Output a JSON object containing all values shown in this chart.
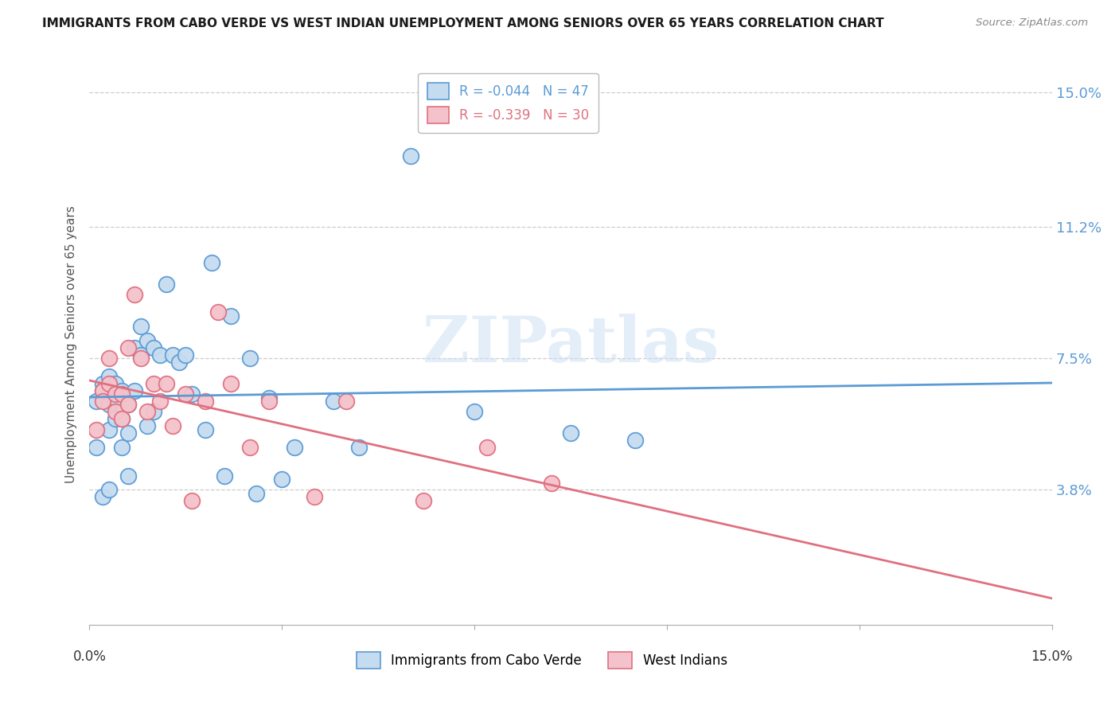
{
  "title": "IMMIGRANTS FROM CABO VERDE VS WEST INDIAN UNEMPLOYMENT AMONG SENIORS OVER 65 YEARS CORRELATION CHART",
  "source": "Source: ZipAtlas.com",
  "ylabel": "Unemployment Among Seniors over 65 years",
  "ytick_labels": [
    "15.0%",
    "11.2%",
    "7.5%",
    "3.8%"
  ],
  "ytick_values": [
    0.15,
    0.112,
    0.075,
    0.038
  ],
  "xlim": [
    0.0,
    0.15
  ],
  "ylim": [
    0.0,
    0.158
  ],
  "cabo_verde_color": "#c5dcf0",
  "cabo_verde_edge": "#5b9bd5",
  "west_indian_color": "#f4c2cb",
  "west_indian_edge": "#e07080",
  "trend_cabo_color": "#5b9bd5",
  "trend_west_color": "#e07080",
  "cabo_R": "-0.044",
  "cabo_N": "47",
  "west_R": "-0.339",
  "west_N": "30",
  "watermark": "ZIPatlas",
  "cabo_verde_x": [
    0.001,
    0.001,
    0.002,
    0.002,
    0.002,
    0.003,
    0.003,
    0.003,
    0.003,
    0.004,
    0.004,
    0.004,
    0.005,
    0.005,
    0.005,
    0.006,
    0.006,
    0.006,
    0.007,
    0.007,
    0.008,
    0.008,
    0.009,
    0.009,
    0.01,
    0.01,
    0.011,
    0.012,
    0.013,
    0.014,
    0.015,
    0.016,
    0.018,
    0.019,
    0.021,
    0.022,
    0.025,
    0.026,
    0.028,
    0.03,
    0.032,
    0.038,
    0.042,
    0.05,
    0.06,
    0.075,
    0.085
  ],
  "cabo_verde_y": [
    0.063,
    0.05,
    0.068,
    0.066,
    0.036,
    0.07,
    0.062,
    0.055,
    0.038,
    0.068,
    0.064,
    0.058,
    0.066,
    0.058,
    0.05,
    0.062,
    0.054,
    0.042,
    0.066,
    0.078,
    0.076,
    0.084,
    0.08,
    0.056,
    0.078,
    0.06,
    0.076,
    0.096,
    0.076,
    0.074,
    0.076,
    0.065,
    0.055,
    0.102,
    0.042,
    0.087,
    0.075,
    0.037,
    0.064,
    0.041,
    0.05,
    0.063,
    0.05,
    0.132,
    0.06,
    0.054,
    0.052
  ],
  "west_indian_x": [
    0.001,
    0.002,
    0.002,
    0.003,
    0.003,
    0.004,
    0.004,
    0.005,
    0.005,
    0.006,
    0.006,
    0.007,
    0.008,
    0.009,
    0.01,
    0.011,
    0.012,
    0.013,
    0.015,
    0.016,
    0.018,
    0.02,
    0.022,
    0.025,
    0.028,
    0.035,
    0.04,
    0.052,
    0.062,
    0.072
  ],
  "west_indian_y": [
    0.055,
    0.066,
    0.063,
    0.075,
    0.068,
    0.065,
    0.06,
    0.065,
    0.058,
    0.062,
    0.078,
    0.093,
    0.075,
    0.06,
    0.068,
    0.063,
    0.068,
    0.056,
    0.065,
    0.035,
    0.063,
    0.088,
    0.068,
    0.05,
    0.063,
    0.036,
    0.063,
    0.035,
    0.05,
    0.04
  ]
}
